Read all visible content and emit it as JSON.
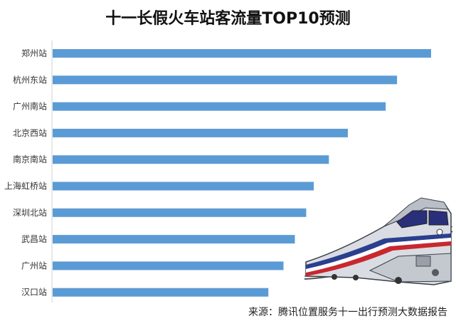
{
  "chart_data": {
    "type": "bar",
    "orientation": "horizontal",
    "title": "十一长假火车站客流量TOP10预测",
    "categories": [
      "郑州站",
      "杭州东站",
      "广州南站",
      "北京西站",
      "南京南站",
      "上海虹桥站",
      "深圳北站",
      "武昌站",
      "广州站",
      "汉口站"
    ],
    "values": [
      100,
      91,
      88,
      78,
      73,
      69,
      67,
      64,
      61,
      57
    ],
    "xlim": [
      0,
      100
    ],
    "grid": false,
    "legend": "none",
    "bar_color": "#5B9BD5"
  },
  "source": "来源：腾讯位置服务十一出行预测大数据报告",
  "illustration": "train-illustration"
}
